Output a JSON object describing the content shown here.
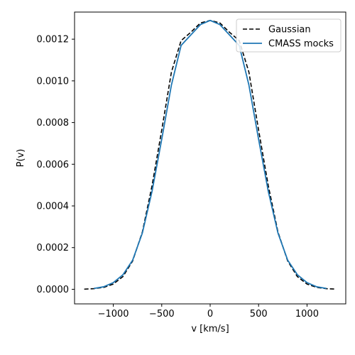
{
  "chart_data": {
    "type": "line",
    "title": "",
    "xlabel": "v [km/s]",
    "ylabel": "P(v)",
    "xlim": [
      -1400,
      1400
    ],
    "ylim": [
      -7e-05,
      0.00133
    ],
    "xticks": [
      -1000,
      -500,
      0,
      500,
      1000
    ],
    "xtick_labels": [
      "−1000",
      "−500",
      "0",
      "500",
      "1000"
    ],
    "yticks": [
      0,
      0.0002,
      0.0004,
      0.0006,
      0.0008,
      0.001,
      0.0012
    ],
    "ytick_labels": [
      "0.0000",
      "0.0002",
      "0.0004",
      "0.0006",
      "0.0008",
      "0.0010",
      "0.0012"
    ],
    "grid": false,
    "legend_position": "top-right",
    "series": [
      {
        "name": "Gaussian",
        "style": "dashed",
        "color": "#000000",
        "x": [
          -1300,
          -1200,
          -1100,
          -1000,
          -900,
          -800,
          -700,
          -600,
          -500,
          -400,
          -300,
          -200,
          -100,
          0,
          100,
          200,
          300,
          400,
          500,
          600,
          700,
          800,
          900,
          1000,
          1100,
          1200,
          1300
        ],
        "y": [
          7e-07,
          3e-06,
          9e-06,
          2.5e-05,
          6.1e-05,
          0.000136,
          0.000275,
          0.000497,
          0.000764,
          0.001042,
          0.001193,
          0.001233,
          0.001278,
          0.00129,
          0.001278,
          0.001233,
          0.001193,
          0.001042,
          0.000764,
          0.000497,
          0.000275,
          0.000136,
          6.1e-05,
          2.5e-05,
          9e-06,
          3e-06,
          7e-07
        ]
      },
      {
        "name": "CMASS mocks",
        "style": "solid",
        "color": "#1f77b4",
        "x": [
          -1200,
          -1100,
          -1000,
          -900,
          -800,
          -700,
          -600,
          -500,
          -400,
          -300,
          -200,
          -100,
          0,
          100,
          200,
          300,
          400,
          500,
          600,
          700,
          800,
          900,
          1000,
          1100,
          1200
        ],
        "y": [
          4e-06,
          1.2e-05,
          3.2e-05,
          7e-05,
          0.00014,
          0.00027,
          0.00047,
          0.00072,
          0.00098,
          0.00117,
          0.00122,
          0.00127,
          0.00129,
          0.00127,
          0.00122,
          0.00117,
          0.00098,
          0.00072,
          0.00047,
          0.00027,
          0.00014,
          7e-05,
          3.2e-05,
          1.2e-05,
          4e-06
        ]
      }
    ]
  }
}
